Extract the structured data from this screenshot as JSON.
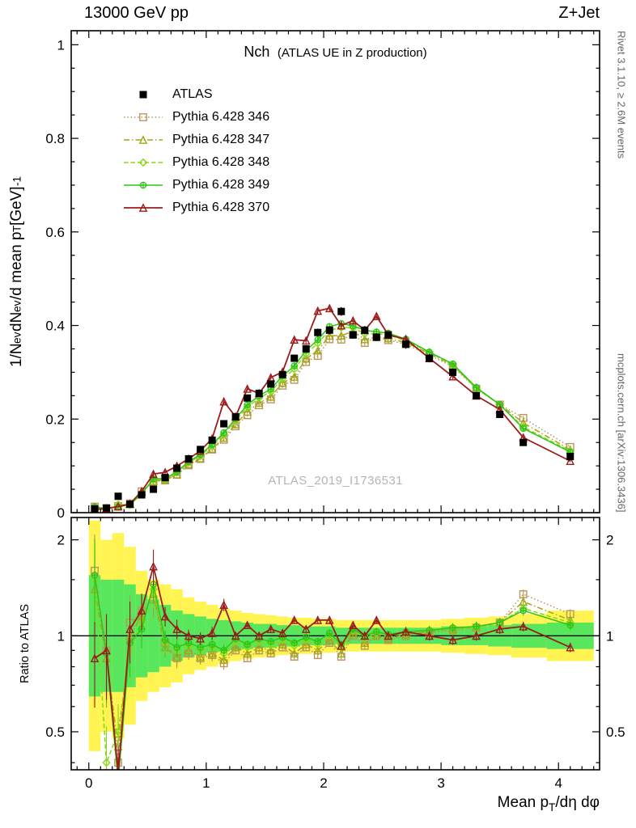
{
  "header": {
    "left": "13000 GeV pp",
    "right": "Z+Jet"
  },
  "panel_main": {
    "title_main": "Nch",
    "title_sub": "(ATLAS UE in Z production)",
    "ylabel": "1/N_{ev} dN_{ev}/d mean p_{T}  [GeV]^{-1}",
    "watermark": "ATLAS_2019_I1736531",
    "yticks": [
      0,
      0.2,
      0.4,
      0.6,
      0.8,
      1
    ]
  },
  "panel_ratio": {
    "ylabel": "Ratio to ATLAS",
    "yticks": [
      0.5,
      1,
      2
    ]
  },
  "xaxis": {
    "label": "Mean p_{T}/dη dφ",
    "ticks": [
      0,
      1,
      2,
      3,
      4
    ]
  },
  "sidebar_right": {
    "top": "Rivet 3.1.10, ≥ 2.6M events",
    "bottom": "mcplots.cern.ch [arXiv:1306.3436]"
  },
  "chart_data": {
    "type": "line",
    "title": "Nch (ATLAS UE in Z production)",
    "xlabel": "Mean pT/dη dφ",
    "ylabel": "1/Nev dNev/d mean pT [GeV]^-1",
    "ratio_ylabel": "Ratio to ATLAS",
    "xlim": [
      -0.15,
      4.35
    ],
    "ylim_main": [
      0,
      1.03
    ],
    "ylim_ratio": [
      0.38,
      2.35
    ],
    "ratio_scale": "log",
    "x": [
      0.05,
      0.15,
      0.25,
      0.35,
      0.45,
      0.55,
      0.65,
      0.75,
      0.85,
      0.95,
      1.05,
      1.15,
      1.25,
      1.35,
      1.45,
      1.55,
      1.65,
      1.75,
      1.85,
      1.95,
      2.05,
      2.15,
      2.25,
      2.35,
      2.45,
      2.55,
      2.7,
      2.9,
      3.1,
      3.3,
      3.5,
      3.7,
      4.1
    ],
    "series": [
      {
        "key": "atlas",
        "name": "ATLAS",
        "is_reference": true,
        "color": "#000000",
        "marker": "square-filled",
        "line": "none",
        "values": [
          0.008,
          0.01,
          0.035,
          0.018,
          0.038,
          0.05,
          0.075,
          0.095,
          0.115,
          0.135,
          0.155,
          0.19,
          0.205,
          0.245,
          0.255,
          0.275,
          0.295,
          0.33,
          0.35,
          0.385,
          0.39,
          0.43,
          0.38,
          0.39,
          0.375,
          0.38,
          0.36,
          0.33,
          0.3,
          0.25,
          0.21,
          0.15,
          0.12
        ]
      },
      {
        "key": "p346",
        "name": "Pythia 6.428 346",
        "color": "#b9975b",
        "marker": "square-open",
        "line": "dotted",
        "ratio": [
          1.6,
          0.9,
          0.4,
          1.1,
          1.2,
          1.3,
          0.95,
          0.85,
          0.88,
          0.85,
          0.87,
          0.82,
          0.9,
          0.85,
          0.9,
          0.88,
          0.92,
          0.86,
          0.92,
          0.87,
          0.95,
          0.86,
          1.0,
          0.93,
          1.0,
          0.97,
          1.0,
          1.02,
          1.04,
          1.06,
          1.1,
          1.35,
          1.17
        ]
      },
      {
        "key": "p347",
        "name": "Pythia 6.428 347",
        "color": "#a4a418",
        "marker": "triangle-open",
        "line": "dashdot",
        "ratio": [
          1.4,
          0.85,
          0.45,
          1.0,
          1.15,
          1.35,
          0.92,
          0.86,
          0.9,
          0.86,
          0.88,
          0.84,
          0.92,
          0.88,
          0.92,
          0.9,
          0.94,
          0.88,
          0.94,
          0.9,
          0.97,
          0.88,
          1.02,
          0.95,
          1.0,
          0.98,
          1.01,
          1.03,
          1.05,
          1.07,
          1.1,
          1.28,
          1.12
        ]
      },
      {
        "key": "p348",
        "name": "Pythia 6.428 348",
        "color": "#86d819",
        "marker": "diamond-open",
        "line": "dashed",
        "ratio": [
          1.5,
          0.4,
          0.5,
          0.9,
          1.1,
          1.4,
          0.95,
          0.9,
          0.93,
          0.9,
          0.92,
          0.88,
          0.96,
          0.92,
          0.96,
          0.94,
          0.97,
          0.93,
          0.97,
          0.94,
          1.0,
          0.92,
          1.04,
          0.98,
          1.02,
          1.0,
          1.02,
          1.04,
          1.05,
          1.06,
          1.1,
          1.22,
          1.1
        ]
      },
      {
        "key": "p349",
        "name": "Pythia 6.428 349",
        "color": "#2ec418",
        "marker": "circle-plus",
        "line": "solid",
        "ratio": [
          1.55,
          0.88,
          0.35,
          0.95,
          1.05,
          1.45,
          0.97,
          0.92,
          0.95,
          0.92,
          0.94,
          0.9,
          0.98,
          0.94,
          0.98,
          0.96,
          0.99,
          0.95,
          0.99,
          0.96,
          1.02,
          0.94,
          1.05,
          1.0,
          1.03,
          1.01,
          1.03,
          1.04,
          1.06,
          1.07,
          1.1,
          1.2,
          1.08
        ]
      },
      {
        "key": "p370",
        "name": "Pythia 6.428 370",
        "color": "#9c1b1b",
        "marker": "triangle-open",
        "line": "solid",
        "ratio": [
          0.85,
          0.9,
          0.37,
          1.05,
          1.2,
          1.65,
          1.15,
          1.05,
          1.0,
          0.98,
          1.02,
          1.25,
          1.0,
          1.08,
          1.0,
          1.05,
          1.02,
          1.12,
          1.05,
          1.12,
          1.12,
          0.93,
          1.08,
          1.0,
          1.12,
          1.0,
          1.03,
          1.0,
          0.97,
          1.0,
          1.05,
          1.07,
          0.92
        ]
      }
    ],
    "bands": {
      "note": "ratio uncertainty bands, multiplicative half-width factors around 1",
      "yellow_color": "#fff451",
      "green_color": "#58e65c",
      "yellow": [
        2.3,
        2.0,
        2.1,
        1.9,
        1.6,
        1.5,
        1.45,
        1.4,
        1.32,
        1.28,
        1.25,
        1.22,
        1.2,
        1.18,
        1.17,
        1.16,
        1.15,
        1.14,
        1.14,
        1.13,
        1.13,
        1.12,
        1.12,
        1.12,
        1.12,
        1.12,
        1.12,
        1.12,
        1.13,
        1.14,
        1.15,
        1.17,
        1.2
      ],
      "green": [
        1.55,
        1.5,
        1.5,
        1.45,
        1.35,
        1.3,
        1.25,
        1.2,
        1.17,
        1.15,
        1.13,
        1.12,
        1.11,
        1.1,
        1.09,
        1.09,
        1.08,
        1.08,
        1.07,
        1.07,
        1.07,
        1.06,
        1.06,
        1.06,
        1.06,
        1.06,
        1.06,
        1.06,
        1.07,
        1.07,
        1.08,
        1.09,
        1.1
      ]
    },
    "legend_position": "top-left",
    "grid": false
  }
}
